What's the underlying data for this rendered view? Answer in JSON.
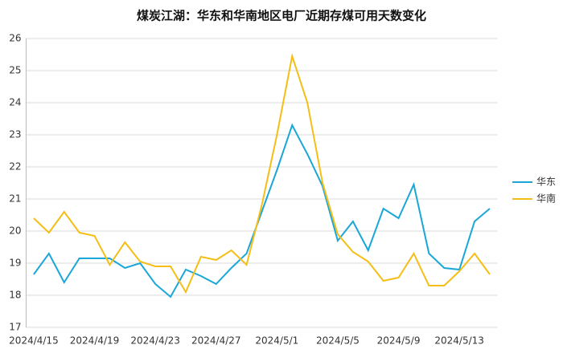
{
  "chart_data": {
    "type": "line",
    "title": "煤炭江湖：华东和华南地区电厂近期存煤可用天数变化",
    "categories": [
      "2024/4/15",
      null,
      null,
      null,
      "2024/4/19",
      null,
      null,
      null,
      "2024/4/23",
      null,
      null,
      null,
      "2024/4/27",
      null,
      null,
      null,
      "2024/5/1",
      null,
      null,
      null,
      "2024/5/5",
      null,
      null,
      null,
      "2024/5/9",
      null,
      null,
      null,
      "2024/5/13",
      null,
      null
    ],
    "series": [
      {
        "name": "华东",
        "color": "#1aa7d8",
        "values": [
          18.65,
          19.3,
          18.4,
          19.15,
          19.15,
          19.15,
          18.85,
          19.0,
          18.35,
          17.95,
          18.8,
          18.6,
          18.35,
          18.85,
          19.3,
          20.6,
          21.9,
          23.3,
          22.4,
          21.4,
          19.7,
          20.3,
          19.4,
          20.7,
          20.4,
          21.45,
          19.3,
          18.85,
          18.8,
          20.3,
          20.7
        ]
      },
      {
        "name": "华南",
        "color": "#f5be16",
        "values": [
          20.4,
          19.95,
          20.6,
          19.95,
          19.85,
          18.95,
          19.65,
          19.05,
          18.9,
          18.9,
          18.1,
          19.2,
          19.1,
          19.4,
          18.95,
          20.8,
          23.0,
          25.45,
          24.0,
          21.5,
          19.9,
          19.35,
          19.05,
          18.45,
          18.55,
          19.3,
          18.3,
          18.3,
          18.75,
          19.3,
          18.65
        ]
      }
    ],
    "ylim": [
      17,
      26
    ],
    "yticks": [
      17,
      18,
      19,
      20,
      21,
      22,
      23,
      24,
      25,
      26
    ],
    "grid": true,
    "legend": "right"
  }
}
